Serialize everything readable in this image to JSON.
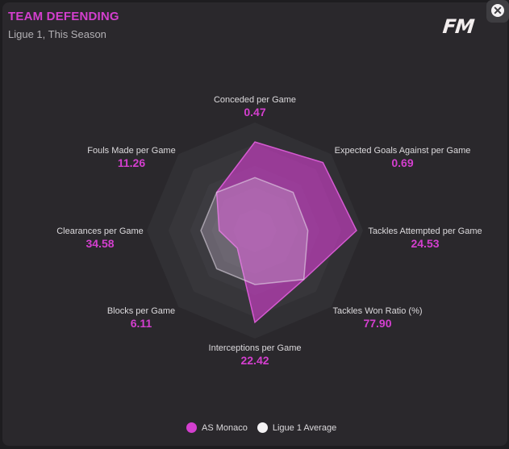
{
  "header": {
    "title": "TEAM DEFENDING",
    "subtitle": "Ligue 1, This Season",
    "logo": "FM",
    "close_icon": "close-icon"
  },
  "colors": {
    "accent": "#d43fcf",
    "average": "#f4f2f4"
  },
  "chart_data": {
    "type": "radar",
    "title": "TEAM DEFENDING",
    "subtitle": "Ligue 1, This Season",
    "axes": [
      {
        "label": "Conceded per Game",
        "value": "0.47"
      },
      {
        "label": "Expected Goals Against per Game",
        "value": "0.69"
      },
      {
        "label": "Tackles Attempted per Game",
        "value": "24.53"
      },
      {
        "label": "Tackles Won Ratio (%)",
        "value": "77.90"
      },
      {
        "label": "Interceptions per Game",
        "value": "22.42"
      },
      {
        "label": "Blocks per Game",
        "value": "6.11"
      },
      {
        "label": "Clearances per Game",
        "value": "34.58"
      },
      {
        "label": "Fouls Made per Game",
        "value": "11.26"
      }
    ],
    "range": [
      0,
      1
    ],
    "rings": 5,
    "series": [
      {
        "name": "AS Monaco",
        "color": "#d43fcf",
        "values": [
          0.82,
          0.89,
          0.94,
          0.64,
          0.85,
          0.23,
          0.33,
          0.5
        ]
      },
      {
        "name": "Ligue 1 Average",
        "color": "#f4f2f4",
        "values": [
          0.49,
          0.5,
          0.49,
          0.64,
          0.5,
          0.5,
          0.5,
          0.5
        ]
      }
    ],
    "legend_position": "bottom"
  }
}
